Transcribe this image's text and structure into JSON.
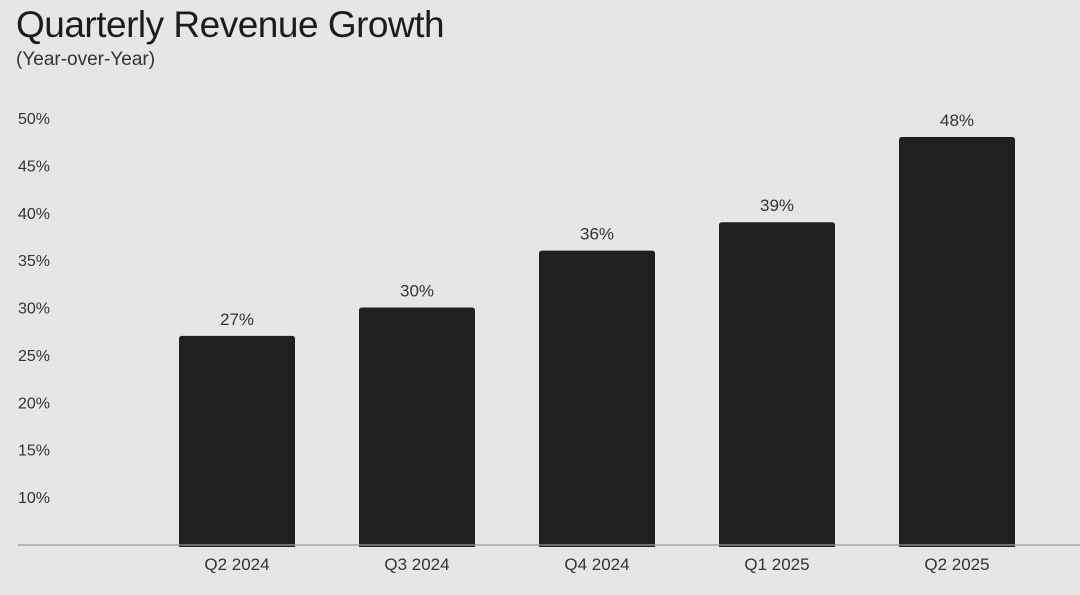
{
  "chart_data": {
    "type": "bar",
    "title": "Quarterly Revenue Growth",
    "subtitle": "(Year-over-Year)",
    "xlabel": "",
    "ylabel": "",
    "categories": [
      "Q2 2024",
      "Q3 2024",
      "Q4 2024",
      "Q1 2025",
      "Q2 2025"
    ],
    "values": [
      27,
      30,
      36,
      39,
      48
    ],
    "data_labels": [
      "27%",
      "30%",
      "36%",
      "39%",
      "48%"
    ],
    "y_ticks": [
      10,
      15,
      20,
      25,
      30,
      35,
      40,
      45,
      50
    ],
    "y_tick_labels": [
      "10%",
      "15%",
      "20%",
      "25%",
      "30%",
      "35%",
      "40%",
      "45%",
      "50%"
    ],
    "ylim": [
      5,
      50
    ],
    "grid": false,
    "legend": "none",
    "colors": {
      "bar": "#202020",
      "background": "#e6e6e6",
      "baseline": "#9a9a9a"
    }
  }
}
